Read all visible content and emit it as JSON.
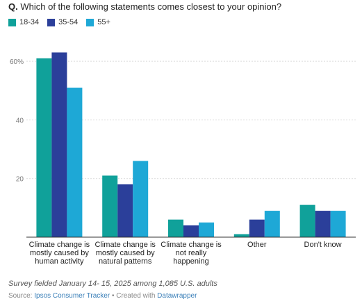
{
  "header": {
    "q_prefix": "Q.",
    "question": "Which of the following statements comes closest to your opinion?"
  },
  "footer": {
    "note": "Survey fielded January 14- 15, 2025 among 1,085 U.S. adults",
    "source_label": "Source:",
    "source_link": "Ipsos Consumer Tracker",
    "created_text": "• Created with",
    "created_link": "Datawrapper"
  },
  "chart_data": {
    "type": "bar",
    "title": "Which of the following statements comes closest to your opinion?",
    "xlabel": "",
    "ylabel": "",
    "ylim": [
      0,
      65
    ],
    "yticks": [
      {
        "value": 60,
        "label": "60%"
      },
      {
        "value": 40,
        "label": "40"
      },
      {
        "value": 20,
        "label": "20"
      }
    ],
    "grid": true,
    "legend_position": "top-left",
    "categories": [
      [
        "Climate change is",
        "mostly caused by",
        "human activity"
      ],
      [
        "Climate change is",
        "mostly caused by",
        "natural patterns"
      ],
      [
        "Climate change is",
        "not really",
        "happening"
      ],
      [
        "Other"
      ],
      [
        "Don't know"
      ]
    ],
    "series": [
      {
        "name": "18-34",
        "color": "#10a19a",
        "values": [
          61,
          21,
          6,
          1,
          11
        ]
      },
      {
        "name": "35-54",
        "color": "#2b3f9a",
        "values": [
          63,
          18,
          4,
          6,
          9
        ]
      },
      {
        "name": "55+",
        "color": "#1ea8d6",
        "values": [
          51,
          26,
          5,
          9,
          9
        ]
      }
    ]
  }
}
